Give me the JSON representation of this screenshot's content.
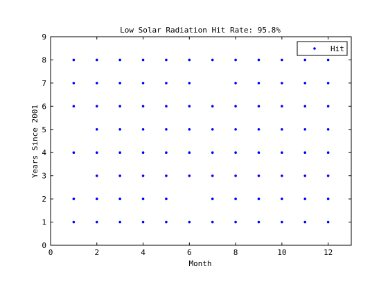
{
  "chart_data": {
    "type": "scatter",
    "title": "Low Solar Radiation Hit Rate: 95.8%",
    "xlabel": "Month",
    "ylabel": "Years Since 2001",
    "xlim": [
      0,
      13
    ],
    "ylim": [
      0,
      9
    ],
    "x_ticks": [
      0,
      2,
      4,
      6,
      8,
      10,
      12
    ],
    "y_ticks": [
      0,
      1,
      2,
      3,
      4,
      5,
      6,
      7,
      8,
      9
    ],
    "grid": false,
    "legend_position": "top-right",
    "marker": "point",
    "series": [
      {
        "name": "Hit",
        "color": "#0000ff",
        "points": [
          [
            1,
            1
          ],
          [
            2,
            1
          ],
          [
            3,
            1
          ],
          [
            4,
            1
          ],
          [
            5,
            1
          ],
          [
            6,
            1
          ],
          [
            7,
            1
          ],
          [
            8,
            1
          ],
          [
            9,
            1
          ],
          [
            10,
            1
          ],
          [
            11,
            1
          ],
          [
            12,
            1
          ],
          [
            1,
            2
          ],
          [
            2,
            2
          ],
          [
            3,
            2
          ],
          [
            4,
            2
          ],
          [
            5,
            2
          ],
          [
            7,
            2
          ],
          [
            8,
            2
          ],
          [
            9,
            2
          ],
          [
            10,
            2
          ],
          [
            11,
            2
          ],
          [
            12,
            2
          ],
          [
            2,
            3
          ],
          [
            3,
            3
          ],
          [
            4,
            3
          ],
          [
            5,
            3
          ],
          [
            6,
            3
          ],
          [
            7,
            3
          ],
          [
            8,
            3
          ],
          [
            9,
            3
          ],
          [
            10,
            3
          ],
          [
            11,
            3
          ],
          [
            12,
            3
          ],
          [
            1,
            4
          ],
          [
            2,
            4
          ],
          [
            3,
            4
          ],
          [
            4,
            4
          ],
          [
            5,
            4
          ],
          [
            6,
            4
          ],
          [
            7,
            4
          ],
          [
            8,
            4
          ],
          [
            9,
            4
          ],
          [
            10,
            4
          ],
          [
            11,
            4
          ],
          [
            12,
            4
          ],
          [
            2,
            5
          ],
          [
            3,
            5
          ],
          [
            4,
            5
          ],
          [
            5,
            5
          ],
          [
            6,
            5
          ],
          [
            7,
            5
          ],
          [
            8,
            5
          ],
          [
            9,
            5
          ],
          [
            10,
            5
          ],
          [
            11,
            5
          ],
          [
            12,
            5
          ],
          [
            1,
            6
          ],
          [
            2,
            6
          ],
          [
            3,
            6
          ],
          [
            4,
            6
          ],
          [
            5,
            6
          ],
          [
            6,
            6
          ],
          [
            7,
            6
          ],
          [
            8,
            6
          ],
          [
            9,
            6
          ],
          [
            10,
            6
          ],
          [
            11,
            6
          ],
          [
            12,
            6
          ],
          [
            1,
            7
          ],
          [
            2,
            7
          ],
          [
            3,
            7
          ],
          [
            4,
            7
          ],
          [
            5,
            7
          ],
          [
            6,
            7
          ],
          [
            8,
            7
          ],
          [
            9,
            7
          ],
          [
            10,
            7
          ],
          [
            11,
            7
          ],
          [
            12,
            7
          ],
          [
            1,
            8
          ],
          [
            2,
            8
          ],
          [
            3,
            8
          ],
          [
            4,
            8
          ],
          [
            5,
            8
          ],
          [
            6,
            8
          ],
          [
            7,
            8
          ],
          [
            8,
            8
          ],
          [
            9,
            8
          ],
          [
            10,
            8
          ],
          [
            11,
            8
          ],
          [
            12,
            8
          ]
        ]
      }
    ]
  }
}
